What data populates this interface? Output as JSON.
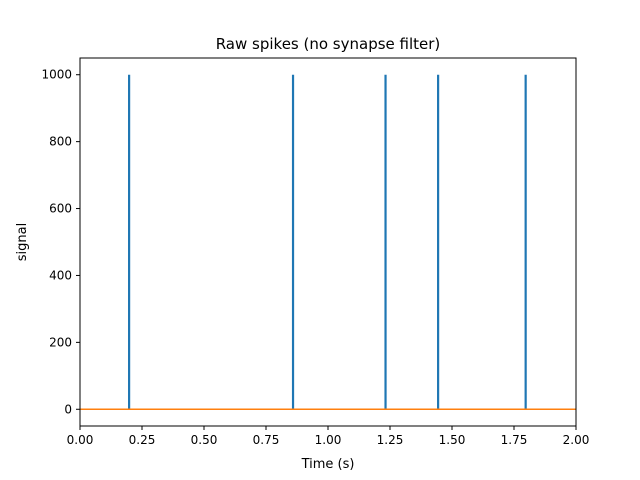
{
  "chart_data": {
    "type": "line",
    "title": "Raw spikes (no synapse filter)",
    "xlabel": "Time (s)",
    "ylabel": "signal",
    "xlim": [
      0.0,
      2.0
    ],
    "ylim": [
      -50,
      1050
    ],
    "xticks": [
      0.0,
      0.25,
      0.5,
      0.75,
      1.0,
      1.25,
      1.5,
      1.75,
      2.0
    ],
    "xtick_labels": [
      "0.00",
      "0.25",
      "0.50",
      "0.75",
      "1.00",
      "1.25",
      "1.50",
      "1.75",
      "2.00"
    ],
    "yticks": [
      0,
      200,
      400,
      600,
      800,
      1000
    ],
    "ytick_labels": [
      "0",
      "200",
      "400",
      "600",
      "800",
      "1000"
    ],
    "grid": false,
    "series": [
      {
        "color": "#1f77b4",
        "baseline": 0,
        "spike_times": [
          0.198,
          0.859,
          1.232,
          1.444,
          1.797
        ],
        "spike_value": 1000
      },
      {
        "color": "#ff7f0e",
        "x": [
          0.0,
          2.0
        ],
        "y": [
          0,
          0
        ]
      }
    ]
  }
}
